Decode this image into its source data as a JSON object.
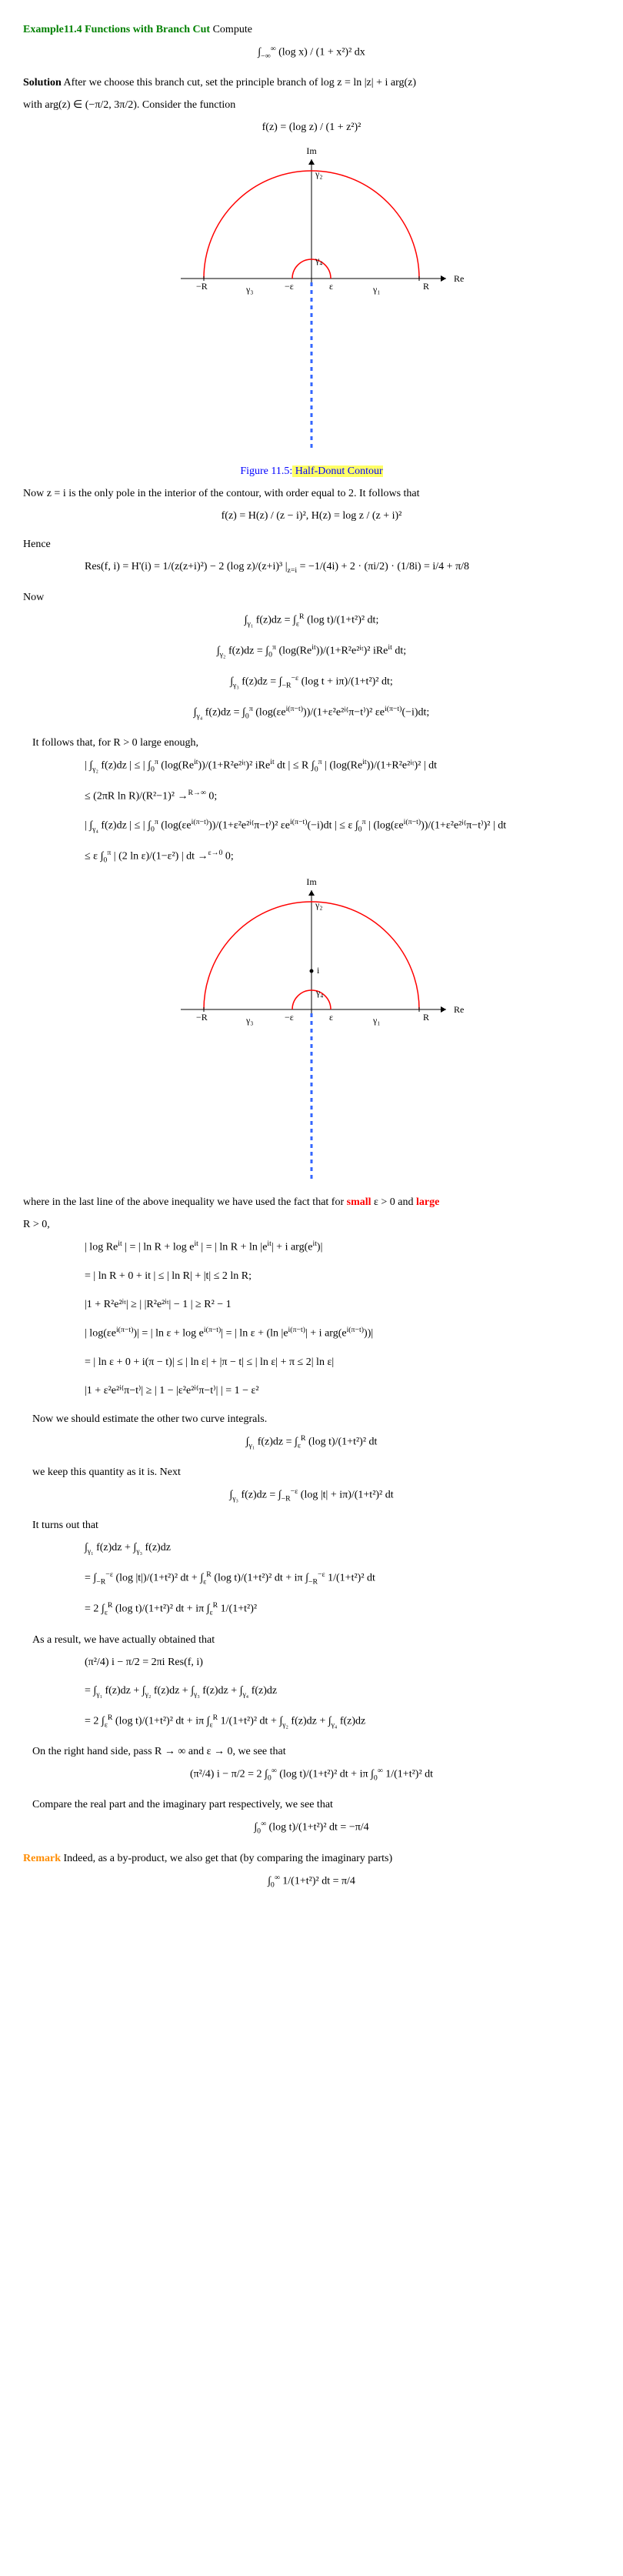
{
  "title": "Example11.4 Functions with Branch Cut",
  "titleAfter": "  Compute",
  "eq1": "∫<sub>−∞</sub><sup>∞</sup> (log x) / (1 + x²)² dx",
  "solution": "Solution",
  "p1": "   After we choose this branch cut, set the principle branch of log z = ln |z| + i arg(z)",
  "p2_a": "with arg(z) ∈ (−",
  "p2_b": "π/2",
  "p2_c": ", ",
  "p2_d": "3π/2",
  "p2_e": "). Consider the function",
  "eq2": "f(z) = (log z) / (1 + z²)²",
  "fig1": {
    "label": "Figure 11.5:",
    "caption": " Half-Donut Contour",
    "axes": {
      "im": "Im",
      "re": "Re"
    },
    "labels": {
      "minusR": "−R",
      "R": "R",
      "minusEps": "−ε",
      "eps": "ε",
      "g1": "γ₁",
      "g2": "γ₂",
      "g3": "γ₃",
      "g4": "γ₄"
    },
    "colors": {
      "arc": "#ff0000",
      "axis": "#000",
      "dash": "#3366ff"
    },
    "R": 140,
    "eps": 25
  },
  "p3": "Now z = i is the only pole in the interior of the contour, with order equal to 2. It follows that",
  "eq3": "f(z) = H(z) / (z − i)²,     H(z) = log z / (z + i)²",
  "hence": "Hence",
  "eq4": "Res(f, i) = H'(i) = 1/(z(z+i)²) − 2 (log z)/(z+i)³ |<sub>z=i</sub> = −1/(4i) + 2 · (πi/2) · (1/8i) = i/4 + π/8",
  "now": "Now",
  "eq5a": "∫<sub>γ₁</sub> f(z)dz = ∫<sub>ε</sub><sup>R</sup> (log t)/(1+t²)² dt;",
  "eq5b": "∫<sub>γ₂</sub> f(z)dz = ∫<sub>0</sub><sup>π</sup> (log(Re<sup>it</sup>))/(1+R²e²ⁱᵗ)² iRe<sup>it</sup> dt;",
  "eq5c": "∫<sub>γ₃</sub> f(z)dz = ∫<sub>−R</sub><sup>−ε</sup> (log t + iπ)/(1+t²)² dt;",
  "eq5d": "∫<sub>γ₄</sub> f(z)dz = ∫<sub>0</sub><sup>π</sup> (log(εe<sup>i(π−t)</sup>))/(1+ε²e²ⁱ⁽π−t⁾)² εe<sup>i(π−t)</sup>(−i)dt;",
  "p4": "It follows that, for R > 0 large enough,",
  "eq6a": "| ∫<sub>γ₂</sub> f(z)dz | ≤ | ∫<sub>0</sub><sup>π</sup> (log(Re<sup>it</sup>))/(1+R²e²ⁱᵗ)² iRe<sup>it</sup> dt | ≤ R ∫<sub>0</sub><sup>π</sup> | (log(Re<sup>it</sup>))/(1+R²e²ⁱᵗ)² | dt",
  "eq6b": "≤ (2πR ln R)/(R²−1)² →<sup>R→∞</sup> 0;",
  "eq7a": "| ∫<sub>γ₄</sub> f(z)dz | ≤ | ∫<sub>0</sub><sup>π</sup> (log(εe<sup>i(π−t)</sup>))/(1+ε²e²ⁱ⁽π−t⁾)² εe<sup>i(π−t)</sup>(−i)dt | ≤ ε ∫<sub>0</sub><sup>π</sup> | (log(εe<sup>i(π−t)</sup>))/(1+ε²e²ⁱ⁽π−t⁾)² | dt",
  "eq7b": "≤ ε ∫<sub>0</sub><sup>π</sup> | (2 ln ε)/(1−ε²) | dt →<sup>ε→0</sup> 0;",
  "fig2": {
    "pointLabel": "i"
  },
  "p5a": "where in the last line of the above inequality we have used the fact that for ",
  "small": "small",
  "p5b": " ε > 0 and ",
  "large": "large",
  "p5c": "R > 0,",
  "eq8a": "| log Re<sup>it</sup> | = | ln R + log e<sup>it</sup> | = | ln R + ln |e<sup>it</sup>| + i arg(e<sup>it</sup>)|",
  "eq8b": "= | ln R + 0 + it | ≤ | ln R| + |t| ≤ 2 ln R;",
  "eq8c": "|1 + R²e²ⁱᵗ| ≥ | |R²e²ⁱᵗ| − 1 | ≥ R² − 1",
  "eq8d": "| log(εe<sup>i(π−t)</sup>)| = | ln ε + log e<sup>i(π−t)</sup>| = | ln ε + (ln |e<sup>i(π−t)</sup>| + i arg(e<sup>i(π−t)</sup>))|",
  "eq8e": "= | ln ε + 0 + i(π − t)| ≤ | ln ε| + |π − t| ≤ | ln ε| + π ≤ 2| ln ε|",
  "eq8f": "|1 + ε²e²ⁱ⁽π−t⁾| ≥ | 1 − |ε²e²ⁱ⁽π−t⁾| | = 1 − ε²",
  "p6": "Now we should estimate the other two curve integrals.",
  "eq9": "∫<sub>γ₁</sub> f(z)dz = ∫<sub>ε</sub><sup>R</sup> (log t)/(1+t²)² dt",
  "p7": "we keep this quantity as it is. Next",
  "eq10": "∫<sub>γ₃</sub> f(z)dz = ∫<sub>−R</sub><sup>−ε</sup> (log |t| + iπ)/(1+t²)² dt",
  "p8": "It turns out that",
  "eq11a": "∫<sub>γ₁</sub> f(z)dz + ∫<sub>γ₃</sub> f(z)dz",
  "eq11b": "= ∫<sub>−R</sub><sup>−ε</sup> (log |t|)/(1+t²)² dt + ∫<sub>ε</sub><sup>R</sup> (log t)/(1+t²)² dt + iπ ∫<sub>−R</sub><sup>−ε</sup> 1/(1+t²)² dt",
  "eq11c": "= 2 ∫<sub>ε</sub><sup>R</sup> (log t)/(1+t²)² dt + iπ ∫<sub>ε</sub><sup>R</sup> 1/(1+t²)²",
  "p9": "As a result, we have actually obtained that",
  "eq12a": "(π²/4) i − π/2 = 2πi Res(f, i)",
  "eq12b": "= ∫<sub>γ₁</sub> f(z)dz + ∫<sub>γ₂</sub> f(z)dz + ∫<sub>γ₃</sub> f(z)dz + ∫<sub>γ₄</sub> f(z)dz",
  "eq12c": "= 2 ∫<sub>ε</sub><sup>R</sup> (log t)/(1+t²)² dt + iπ ∫<sub>ε</sub><sup>R</sup> 1/(1+t²)² dt + ∫<sub>γ₂</sub> f(z)dz + ∫<sub>γ₄</sub> f(z)dz",
  "p10": "On the right hand side, pass R → ∞ and ε → 0, we see that",
  "eq13": "(π²/4) i − π/2 = 2 ∫<sub>0</sub><sup>∞</sup> (log t)/(1+t²)² dt + iπ ∫<sub>0</sub><sup>∞</sup> 1/(1+t²)² dt",
  "p11": "Compare the real part and the imaginary part respectively, we see that",
  "eq14": "∫<sub>0</sub><sup>∞</sup> (log t)/(1+t²)² dt = −π/4",
  "remark": "Remark",
  "p12": " Indeed, as a by-product, we also get that (by comparing the imaginary parts)",
  "eq15": "∫<sub>0</sub><sup>∞</sup> 1/(1+t²)² dt = π/4"
}
